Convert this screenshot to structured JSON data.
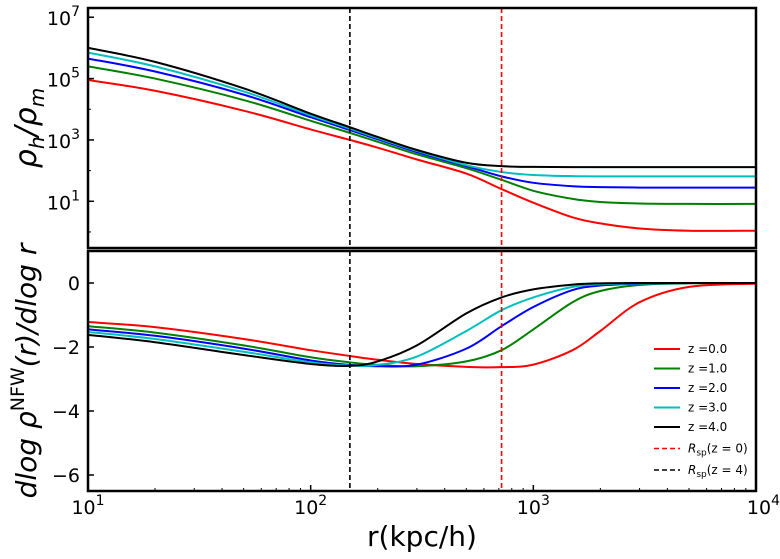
{
  "chart_data": [
    {
      "type": "line",
      "panel": "top",
      "ylabel": "ρh/ρm",
      "xscale": "log",
      "yscale": "log",
      "xlim": [
        10,
        10000
      ],
      "ylim": [
        0.3,
        20000000
      ],
      "yticks": [
        {
          "value": 10,
          "base": "10",
          "exp": "1"
        },
        {
          "value": 1000,
          "base": "10",
          "exp": "3"
        },
        {
          "value": 100000,
          "base": "10",
          "exp": "5"
        },
        {
          "value": 10000000,
          "base": "10",
          "exp": "7"
        }
      ],
      "vlines": [
        {
          "x": 150,
          "color": "#000000",
          "style": "dashed"
        },
        {
          "x": 720,
          "color": "#ff0000",
          "style": "dashed"
        }
      ],
      "series": [
        {
          "name": "z =0.0",
          "color": "#ff0000",
          "x": [
            10,
            20,
            50,
            100,
            150,
            200,
            300,
            500,
            720,
            1000,
            1500,
            2000,
            3000,
            5000,
            10000
          ],
          "y": [
            90000,
            40000,
            9000,
            2200,
            1000,
            560,
            230,
            80,
            25,
            9,
            3,
            1.9,
            1.3,
            1.1,
            1.1
          ]
        },
        {
          "name": "z =1.0",
          "color": "#008000",
          "x": [
            10,
            20,
            50,
            100,
            150,
            200,
            300,
            500,
            720,
            1000,
            1500,
            2000,
            3000,
            5000,
            10000
          ],
          "y": [
            250000,
            100000,
            20000,
            4200,
            1700,
            870,
            340,
            120,
            50,
            22,
            12,
            9.5,
            8.5,
            8.2,
            8.2
          ]
        },
        {
          "name": "z =2.0",
          "color": "#0000ff",
          "x": [
            10,
            20,
            50,
            100,
            150,
            200,
            300,
            500,
            720,
            1000,
            1500,
            2000,
            3000,
            5000,
            10000
          ],
          "y": [
            450000,
            170000,
            30000,
            5500,
            2100,
            1050,
            400,
            140,
            65,
            40,
            31,
            29,
            28,
            28,
            28
          ]
        },
        {
          "name": "z =3.0",
          "color": "#00bfbf",
          "x": [
            10,
            20,
            50,
            100,
            150,
            200,
            300,
            500,
            720,
            1000,
            1500,
            2000,
            3000,
            5000,
            10000
          ],
          "y": [
            700000,
            250000,
            38000,
            6300,
            2350,
            1150,
            440,
            150,
            90,
            72,
            66,
            65,
            65,
            65,
            65
          ]
        },
        {
          "name": "z =4.0",
          "color": "#000000",
          "x": [
            10,
            20,
            50,
            100,
            150,
            200,
            300,
            500,
            720,
            1000,
            1500,
            2000,
            3000,
            5000,
            10000
          ],
          "y": [
            1000000,
            350000,
            48000,
            7200,
            2600,
            1250,
            470,
            180,
            140,
            132,
            130,
            130,
            130,
            130,
            130
          ]
        }
      ]
    },
    {
      "type": "line",
      "panel": "bottom",
      "xlabel": "r(kpc/h)",
      "ylabel": "dlog ρNFW(r)/dlog r",
      "xscale": "log",
      "xlim": [
        10,
        10000
      ],
      "ylim": [
        -6.5,
        1.0
      ],
      "xticks": [
        {
          "value": 10,
          "base": "10",
          "exp": "1"
        },
        {
          "value": 100,
          "base": "10",
          "exp": "2"
        },
        {
          "value": 1000,
          "base": "10",
          "exp": "3"
        },
        {
          "value": 10000,
          "base": "10",
          "exp": "4"
        }
      ],
      "yticks": [
        {
          "value": 0,
          "label": "0"
        },
        {
          "value": -2,
          "label": "−2"
        },
        {
          "value": -4,
          "label": "−4"
        },
        {
          "value": -6,
          "label": "−6"
        }
      ],
      "vlines": [
        {
          "x": 150,
          "color": "#000000",
          "style": "dashed"
        },
        {
          "x": 720,
          "color": "#ff0000",
          "style": "dashed"
        }
      ],
      "legend": {
        "position": "lower-right",
        "entries": [
          {
            "label": "z =0.0",
            "color": "#ff0000",
            "style": "solid"
          },
          {
            "label": "z =1.0",
            "color": "#008000",
            "style": "solid"
          },
          {
            "label": "z =2.0",
            "color": "#0000ff",
            "style": "solid"
          },
          {
            "label": "z =3.0",
            "color": "#00bfbf",
            "style": "solid"
          },
          {
            "label": "z =4.0",
            "color": "#000000",
            "style": "solid"
          },
          {
            "label": "Rsp(z = 0)",
            "main": "R",
            "sub": "sp",
            "rest": "(z = 0)",
            "color": "#ff0000",
            "style": "dashed"
          },
          {
            "label": "Rsp(z = 4)",
            "main": "R",
            "sub": "sp",
            "rest": "(z = 4)",
            "color": "#000000",
            "style": "dashed"
          }
        ]
      },
      "series": [
        {
          "name": "z =0.0",
          "color": "#ff0000",
          "x": [
            10,
            20,
            50,
            100,
            150,
            200,
            300,
            500,
            720,
            1000,
            1500,
            2000,
            3000,
            5000,
            10000
          ],
          "y": [
            -1.22,
            -1.38,
            -1.75,
            -2.1,
            -2.28,
            -2.4,
            -2.53,
            -2.62,
            -2.63,
            -2.55,
            -2.1,
            -1.5,
            -0.6,
            -0.12,
            -0.02
          ]
        },
        {
          "name": "z =1.0",
          "color": "#008000",
          "x": [
            10,
            20,
            50,
            100,
            150,
            200,
            300,
            500,
            720,
            1000,
            1500,
            2000,
            3000,
            5000,
            10000
          ],
          "y": [
            -1.35,
            -1.55,
            -1.95,
            -2.32,
            -2.48,
            -2.56,
            -2.6,
            -2.45,
            -2.1,
            -1.45,
            -0.6,
            -0.25,
            -0.06,
            -0.01,
            0.0
          ]
        },
        {
          "name": "z =2.0",
          "color": "#0000ff",
          "x": [
            10,
            20,
            50,
            100,
            150,
            200,
            300,
            500,
            720,
            1000,
            1500,
            2000,
            3000,
            5000,
            10000
          ],
          "y": [
            -1.45,
            -1.65,
            -2.05,
            -2.42,
            -2.56,
            -2.6,
            -2.55,
            -2.05,
            -1.35,
            -0.75,
            -0.22,
            -0.08,
            -0.02,
            0.0,
            0.0
          ]
        },
        {
          "name": "z =3.0",
          "color": "#00bfbf",
          "x": [
            10,
            20,
            50,
            100,
            150,
            200,
            300,
            500,
            720,
            1000,
            1500,
            2000,
            3000,
            5000,
            10000
          ],
          "y": [
            -1.53,
            -1.75,
            -2.15,
            -2.48,
            -2.58,
            -2.56,
            -2.3,
            -1.5,
            -0.85,
            -0.45,
            -0.12,
            -0.04,
            -0.01,
            0.0,
            0.0
          ]
        },
        {
          "name": "z =4.0",
          "color": "#000000",
          "x": [
            10,
            20,
            50,
            100,
            150,
            200,
            300,
            500,
            720,
            1000,
            1500,
            2000,
            3000,
            5000,
            10000
          ],
          "y": [
            -1.62,
            -1.85,
            -2.25,
            -2.53,
            -2.59,
            -2.45,
            -1.95,
            -0.95,
            -0.45,
            -0.2,
            -0.05,
            -0.01,
            0.0,
            0.0,
            0.0
          ]
        }
      ]
    }
  ]
}
